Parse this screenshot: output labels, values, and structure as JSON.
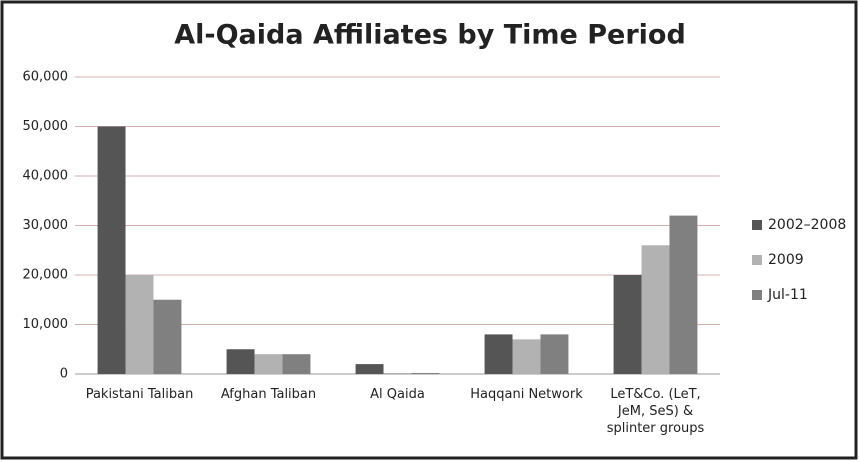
{
  "chart_data": {
    "type": "bar",
    "title": "Al-Qaida Affiliates by Time Period",
    "categories": [
      "Pakistani Taliban",
      "Afghan Taliban",
      "Al Qaida",
      "Haqqani Network",
      "LeT&Co. (LeT, JeM, SeS) & splinter groups"
    ],
    "series": [
      {
        "name": "2002–2008",
        "color": "#555555",
        "values": [
          50000,
          5000,
          2000,
          8000,
          20000
        ]
      },
      {
        "name": "2009",
        "color": "#b2b2b2",
        "values": [
          20000,
          4000,
          200,
          7000,
          26000
        ]
      },
      {
        "name": "Jul-11",
        "color": "#808080",
        "values": [
          15000,
          4000,
          200,
          8000,
          32000
        ]
      }
    ],
    "ylim": [
      0,
      60000
    ],
    "yticks": [
      {
        "value": 0,
        "label": "0"
      },
      {
        "value": 10000,
        "label": "10,000"
      },
      {
        "value": 20000,
        "label": "20,000"
      },
      {
        "value": 30000,
        "label": "30,000"
      },
      {
        "value": 40000,
        "label": "40,000"
      },
      {
        "value": 50000,
        "label": "50,000"
      },
      {
        "value": 60000,
        "label": "60,000"
      }
    ],
    "grid": true,
    "legend": "right"
  }
}
